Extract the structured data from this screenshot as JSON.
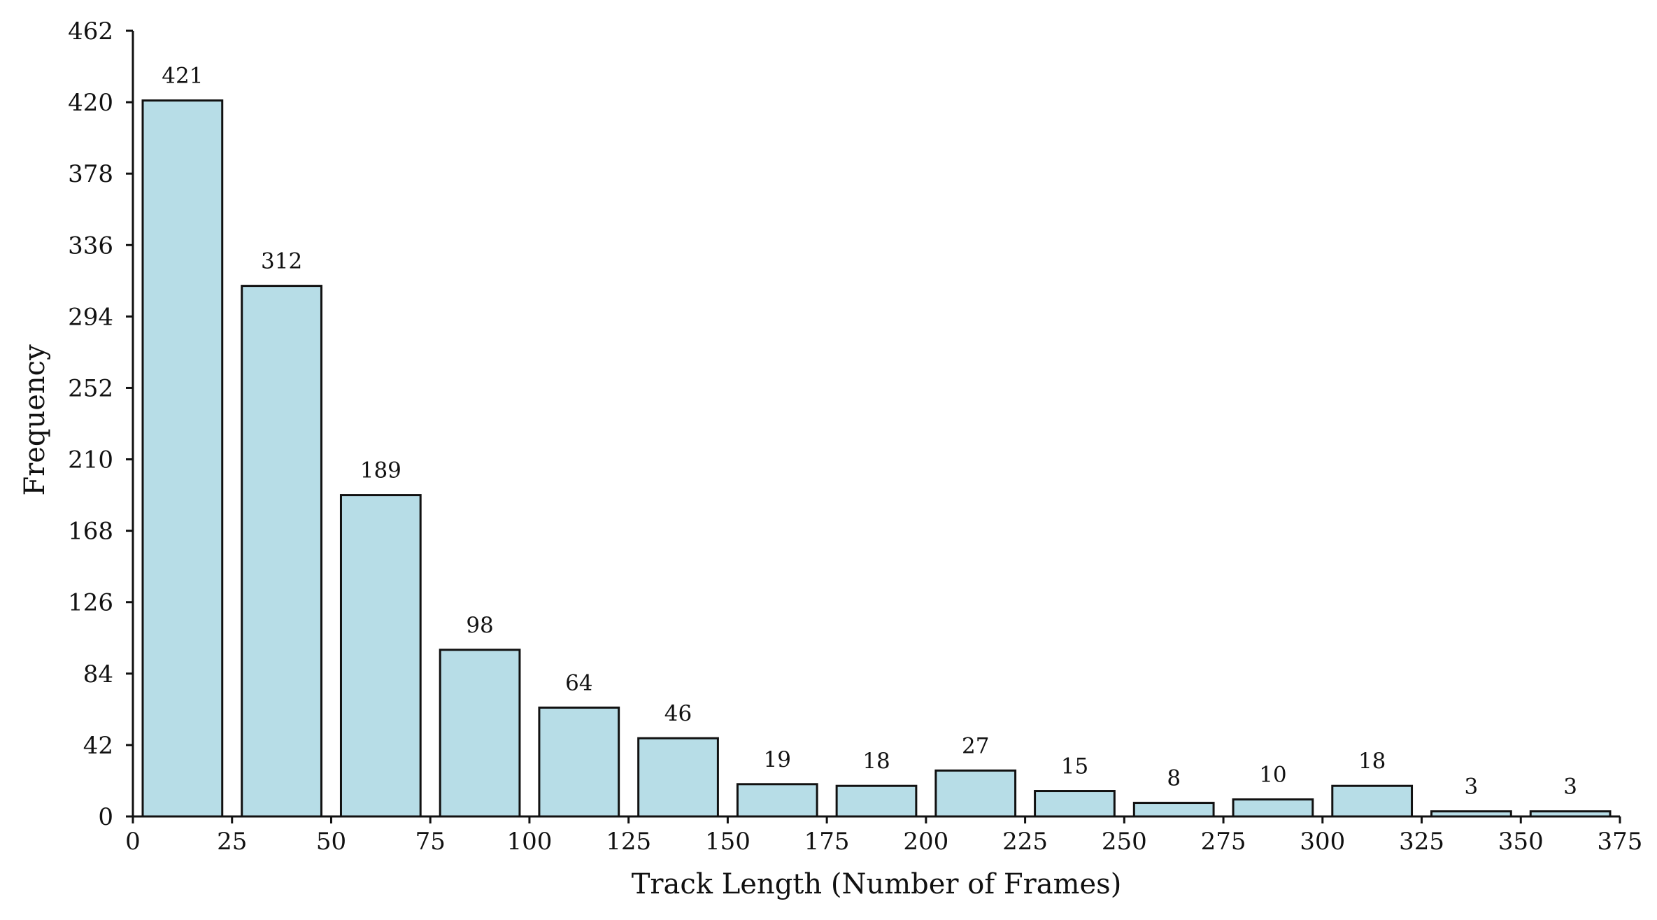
{
  "chart_data": {
    "type": "bar",
    "title": "",
    "xlabel": "Track Length (Number of Frames)",
    "ylabel": "Frequency",
    "bin_width": 25,
    "bins": [
      {
        "start": 0,
        "end": 25,
        "value": 421
      },
      {
        "start": 25,
        "end": 50,
        "value": 312
      },
      {
        "start": 50,
        "end": 75,
        "value": 189
      },
      {
        "start": 75,
        "end": 100,
        "value": 98
      },
      {
        "start": 100,
        "end": 125,
        "value": 64
      },
      {
        "start": 125,
        "end": 150,
        "value": 46
      },
      {
        "start": 150,
        "end": 175,
        "value": 19
      },
      {
        "start": 175,
        "end": 200,
        "value": 18
      },
      {
        "start": 200,
        "end": 225,
        "value": 27
      },
      {
        "start": 225,
        "end": 250,
        "value": 15
      },
      {
        "start": 250,
        "end": 275,
        "value": 8
      },
      {
        "start": 275,
        "end": 300,
        "value": 10
      },
      {
        "start": 300,
        "end": 325,
        "value": 18
      },
      {
        "start": 325,
        "end": 350,
        "value": 3
      },
      {
        "start": 350,
        "end": 375,
        "value": 3
      }
    ],
    "xlim": [
      0,
      375
    ],
    "ylim": [
      0,
      462
    ],
    "xticks": [
      0,
      25,
      50,
      75,
      100,
      125,
      150,
      175,
      200,
      225,
      250,
      275,
      300,
      325,
      350,
      375
    ],
    "yticks": [
      0,
      42,
      84,
      126,
      168,
      210,
      252,
      294,
      336,
      378,
      420,
      462
    ],
    "bar_color": "#b7dde7",
    "edge_color": "#111111",
    "grid": false,
    "legend": "none"
  }
}
